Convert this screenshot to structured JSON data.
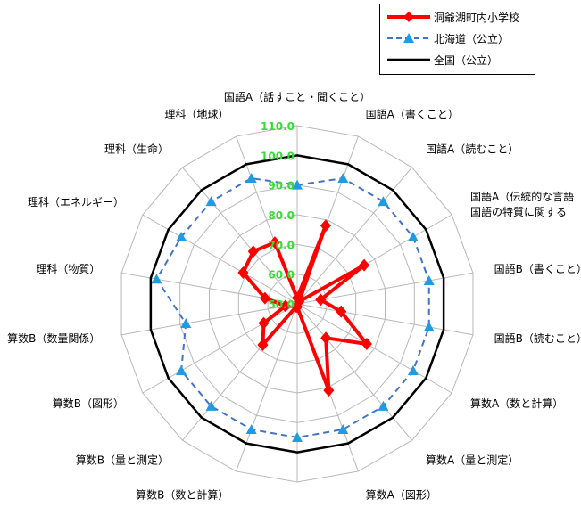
{
  "chart_data": {
    "type": "radar",
    "axes": [
      "国語A（話すこと・聞くこと）",
      "国語A（書くこと）",
      "国語A（読むこと）",
      "国語A（伝統的な言語文化と国語の特質に関する事項）",
      "国語B（書くこと）",
      "国語B（読むこと）",
      "算数A（数と計算）",
      "算数A（量と測定）",
      "算数A（図形）",
      "算数A（数量関係）",
      "算数B（数と計算）",
      "算数B（量と測定）",
      "算数B（図形）",
      "算数B（数量関係）",
      "理科（物質）",
      "理科（エネルギー）",
      "理科（生命）",
      "理科（地球）"
    ],
    "axis_labels": [
      [
        "国語A（話すこと・聞くこと）"
      ],
      [
        "国語A（書くこと）"
      ],
      [
        "国語A（読むこと）"
      ],
      [
        "国語A（伝統的な言語",
        "国語の特質に関する"
      ],
      [
        "国語B（書くこと）"
      ],
      [
        "国語B（読むこと）"
      ],
      [
        "算数A（数と計算）"
      ],
      [
        "算数A（量と測定）"
      ],
      [
        "算数A（図形）"
      ],
      [
        "算数A（数量関係）"
      ],
      [
        "算数B（数と計算）"
      ],
      [
        "算数B（量と測定）"
      ],
      [
        "算数B（図形）"
      ],
      [
        "算数B（数量関係）"
      ],
      [
        "理科（物質）"
      ],
      [
        "理科（エネルギー）"
      ],
      [
        "理科（生命）"
      ],
      [
        "理科（地球）"
      ]
    ],
    "r_min": 50,
    "r_max": 110,
    "r_ticks": [
      50,
      60,
      70,
      80,
      90,
      100,
      110
    ],
    "r_tick_labels": [
      "50.0",
      "60.0",
      "70.0",
      "80.0",
      "90.0",
      "100.0",
      "110.0"
    ],
    "grid": true,
    "legend_position": "top-right",
    "series": [
      {
        "name": "洞爺湖町内小学校",
        "color": "#ff0000",
        "line": "solid",
        "marker": "diamond",
        "values": [
          52,
          78,
          51,
          76,
          58,
          65,
          77,
          65,
          81,
          51,
          51,
          68,
          63,
          54,
          61,
          71,
          73,
          72
        ]
      },
      {
        "name": "北海道（公立）",
        "color": "#4472c4",
        "line": "dashed",
        "marker": "triangle",
        "values": [
          90,
          95,
          95,
          95,
          95,
          95,
          95,
          95,
          95,
          95,
          95,
          95,
          95,
          88,
          98,
          95,
          95,
          95
        ]
      },
      {
        "name": "全国（公立）",
        "color": "#000000",
        "line": "solid",
        "marker": "none",
        "values": [
          100,
          100,
          100,
          100,
          100,
          100,
          100,
          100,
          100,
          100,
          100,
          100,
          100,
          100,
          100,
          100,
          100,
          100
        ]
      }
    ]
  }
}
